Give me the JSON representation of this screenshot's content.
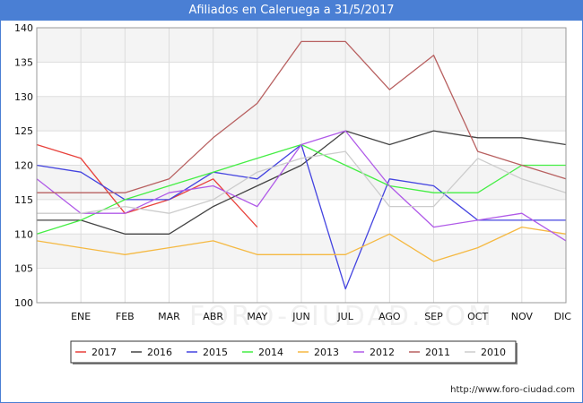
{
  "chart_data": {
    "type": "line",
    "title": "Afiliados en Caleruega a 31/5/2017",
    "xlabel": "",
    "ylabel": "",
    "categories": [
      "",
      "ENE",
      "FEB",
      "MAR",
      "ABR",
      "MAY",
      "JUN",
      "JUL",
      "AGO",
      "SEP",
      "OCT",
      "NOV",
      "DIC"
    ],
    "ylim": [
      100,
      140
    ],
    "yticks": [
      100,
      105,
      110,
      115,
      120,
      125,
      130,
      135,
      140
    ],
    "grid": true,
    "legend_position": "bottom",
    "watermark": "FORO-CIUDAD.COM",
    "series": [
      {
        "name": "2017",
        "color": "#e8413b",
        "values": [
          123,
          121,
          113,
          115,
          118,
          111,
          null,
          null,
          null,
          null,
          null,
          null,
          null
        ]
      },
      {
        "name": "2016",
        "color": "#444444",
        "values": [
          112,
          112,
          110,
          110,
          114,
          117,
          120,
          125,
          123,
          125,
          124,
          124,
          123
        ]
      },
      {
        "name": "2015",
        "color": "#4444e0",
        "values": [
          120,
          119,
          115,
          115,
          119,
          118,
          123,
          102,
          118,
          117,
          112,
          112,
          112
        ]
      },
      {
        "name": "2014",
        "color": "#44ee44",
        "values": [
          110,
          112,
          115,
          117,
          119,
          121,
          123,
          120,
          117,
          116,
          116,
          120,
          120
        ]
      },
      {
        "name": "2013",
        "color": "#f5b942",
        "values": [
          109,
          108,
          107,
          108,
          109,
          107,
          107,
          107,
          110,
          106,
          108,
          111,
          110
        ]
      },
      {
        "name": "2012",
        "color": "#b05ae8",
        "values": [
          118,
          113,
          113,
          116,
          117,
          114,
          123,
          125,
          117,
          111,
          112,
          113,
          109
        ]
      },
      {
        "name": "2011",
        "color": "#b86060",
        "values": [
          116,
          116,
          116,
          118,
          124,
          129,
          138,
          138,
          131,
          136,
          122,
          120,
          118
        ]
      },
      {
        "name": "2010",
        "color": "#cccccc",
        "values": [
          113,
          113,
          114,
          113,
          115,
          119,
          121,
          122,
          114,
          114,
          121,
          118,
          116
        ]
      }
    ]
  },
  "footer": {
    "url": "http://www.foro-ciudad.com"
  }
}
